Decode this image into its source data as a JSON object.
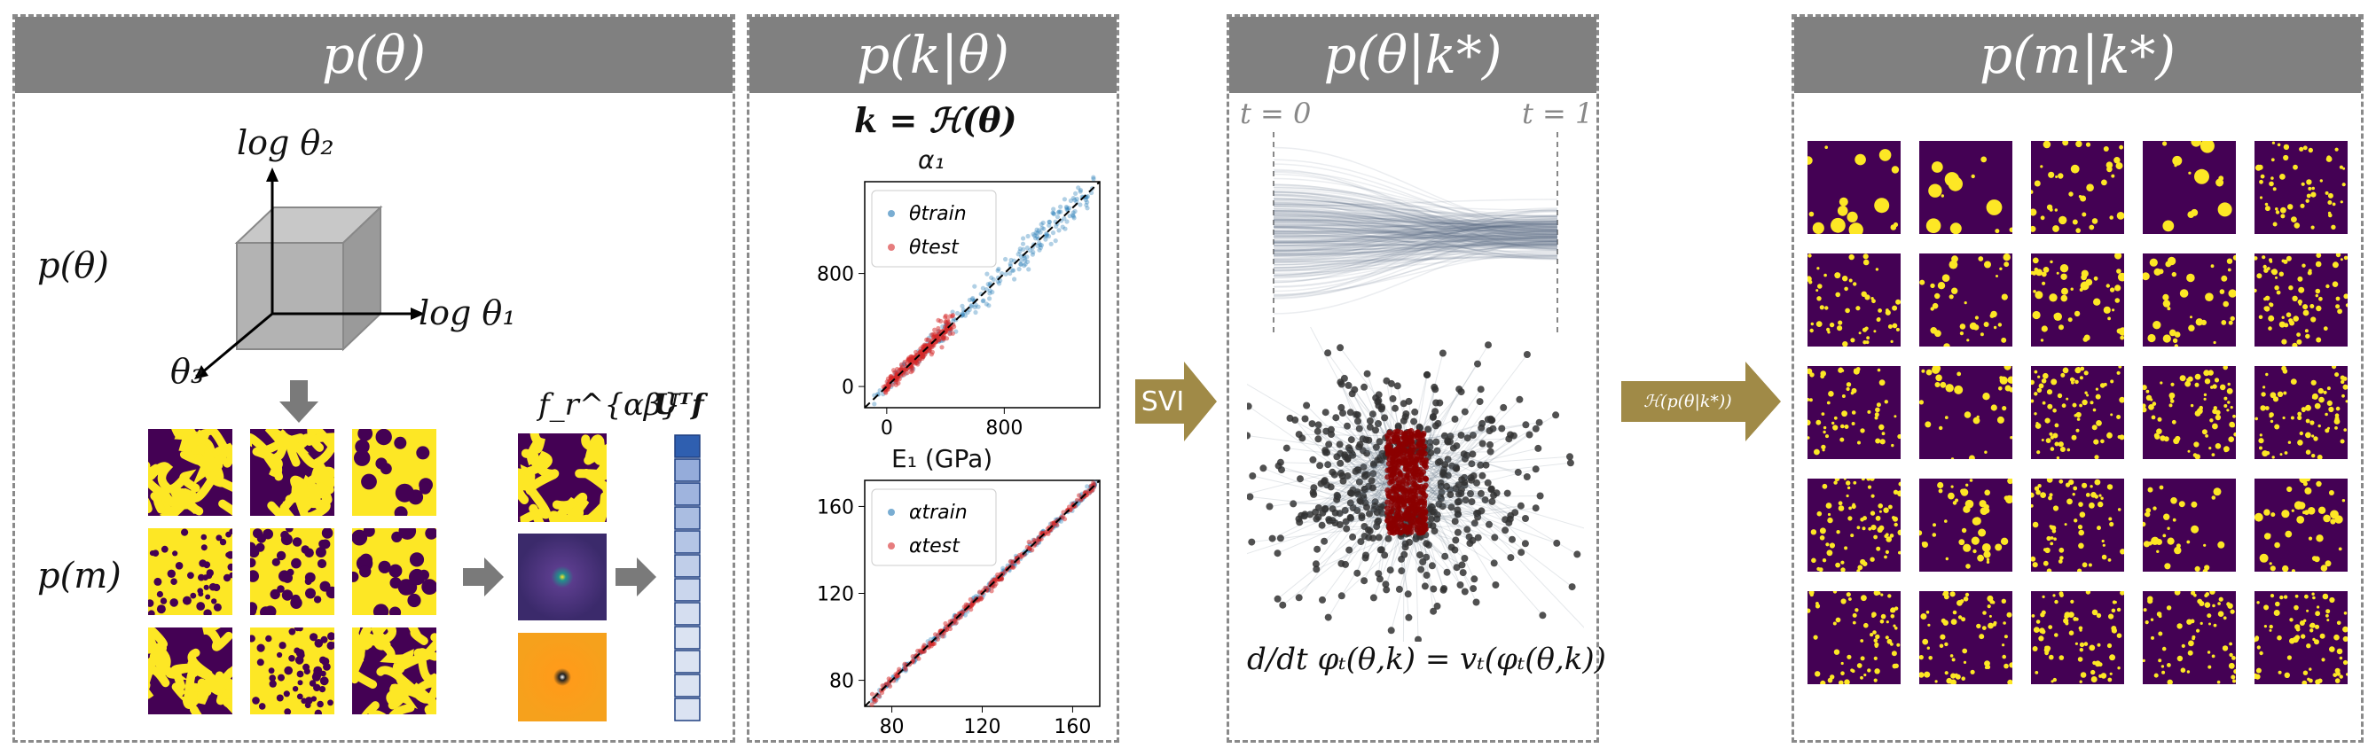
{
  "panels": {
    "prior": {
      "title": "p(θ)",
      "row_prior": "p(θ)",
      "row_micro": "p(m)",
      "axis_x": "log θ₁",
      "axis_y": "log θ₂",
      "axis_z": "θ₃",
      "feature_label": "f_r^{αβ}",
      "vector_label": "Uᵀf"
    },
    "forward": {
      "title": "p(k|θ)",
      "equation": "k = ℋ(θ)"
    },
    "posterior": {
      "title": "p(θ|k*)",
      "t0": "t = 0",
      "t1": "t = 1",
      "ode": "d/dt φₜ(θ,k) = vₜ(φₜ(θ,k))"
    },
    "predictive": {
      "title": "p(m|k*)"
    }
  },
  "arrows": {
    "svi": "SVI",
    "push": "ℋ(p(θ|k*))"
  },
  "charts": [
    {
      "title": "α₁",
      "xticks": [
        "0",
        "800"
      ],
      "yticks": [
        "0",
        "800"
      ],
      "legend": [
        "θtrain",
        "θtest"
      ]
    },
    {
      "title": "E₁ (GPa)",
      "xticks": [
        "80",
        "120",
        "160"
      ],
      "yticks": [
        "80",
        "120",
        "160"
      ],
      "legend": [
        "αtrain",
        "αtest"
      ]
    }
  ],
  "chart_data": [
    {
      "type": "scatter",
      "title": "α₁",
      "xlim": [
        -150,
        1450
      ],
      "ylim": [
        -150,
        1450
      ],
      "series": [
        {
          "name": "θtrain",
          "color": "#1f77b4"
        },
        {
          "name": "θtest",
          "color": "#d62728"
        }
      ],
      "reference_line": "y = x"
    },
    {
      "type": "scatter",
      "title": "E₁ (GPa)",
      "xlim": [
        68,
        172
      ],
      "ylim": [
        68,
        172
      ],
      "series": [
        {
          "name": "αtrain",
          "color": "#1f77b4"
        },
        {
          "name": "αtest",
          "color": "#d62728"
        }
      ],
      "reference_line": "y = x"
    }
  ],
  "colors": {
    "header": "#808080",
    "arrow": "#a08a47",
    "micro_dark": "#440154",
    "micro_light": "#fde725",
    "vector": "#4a72c0"
  }
}
